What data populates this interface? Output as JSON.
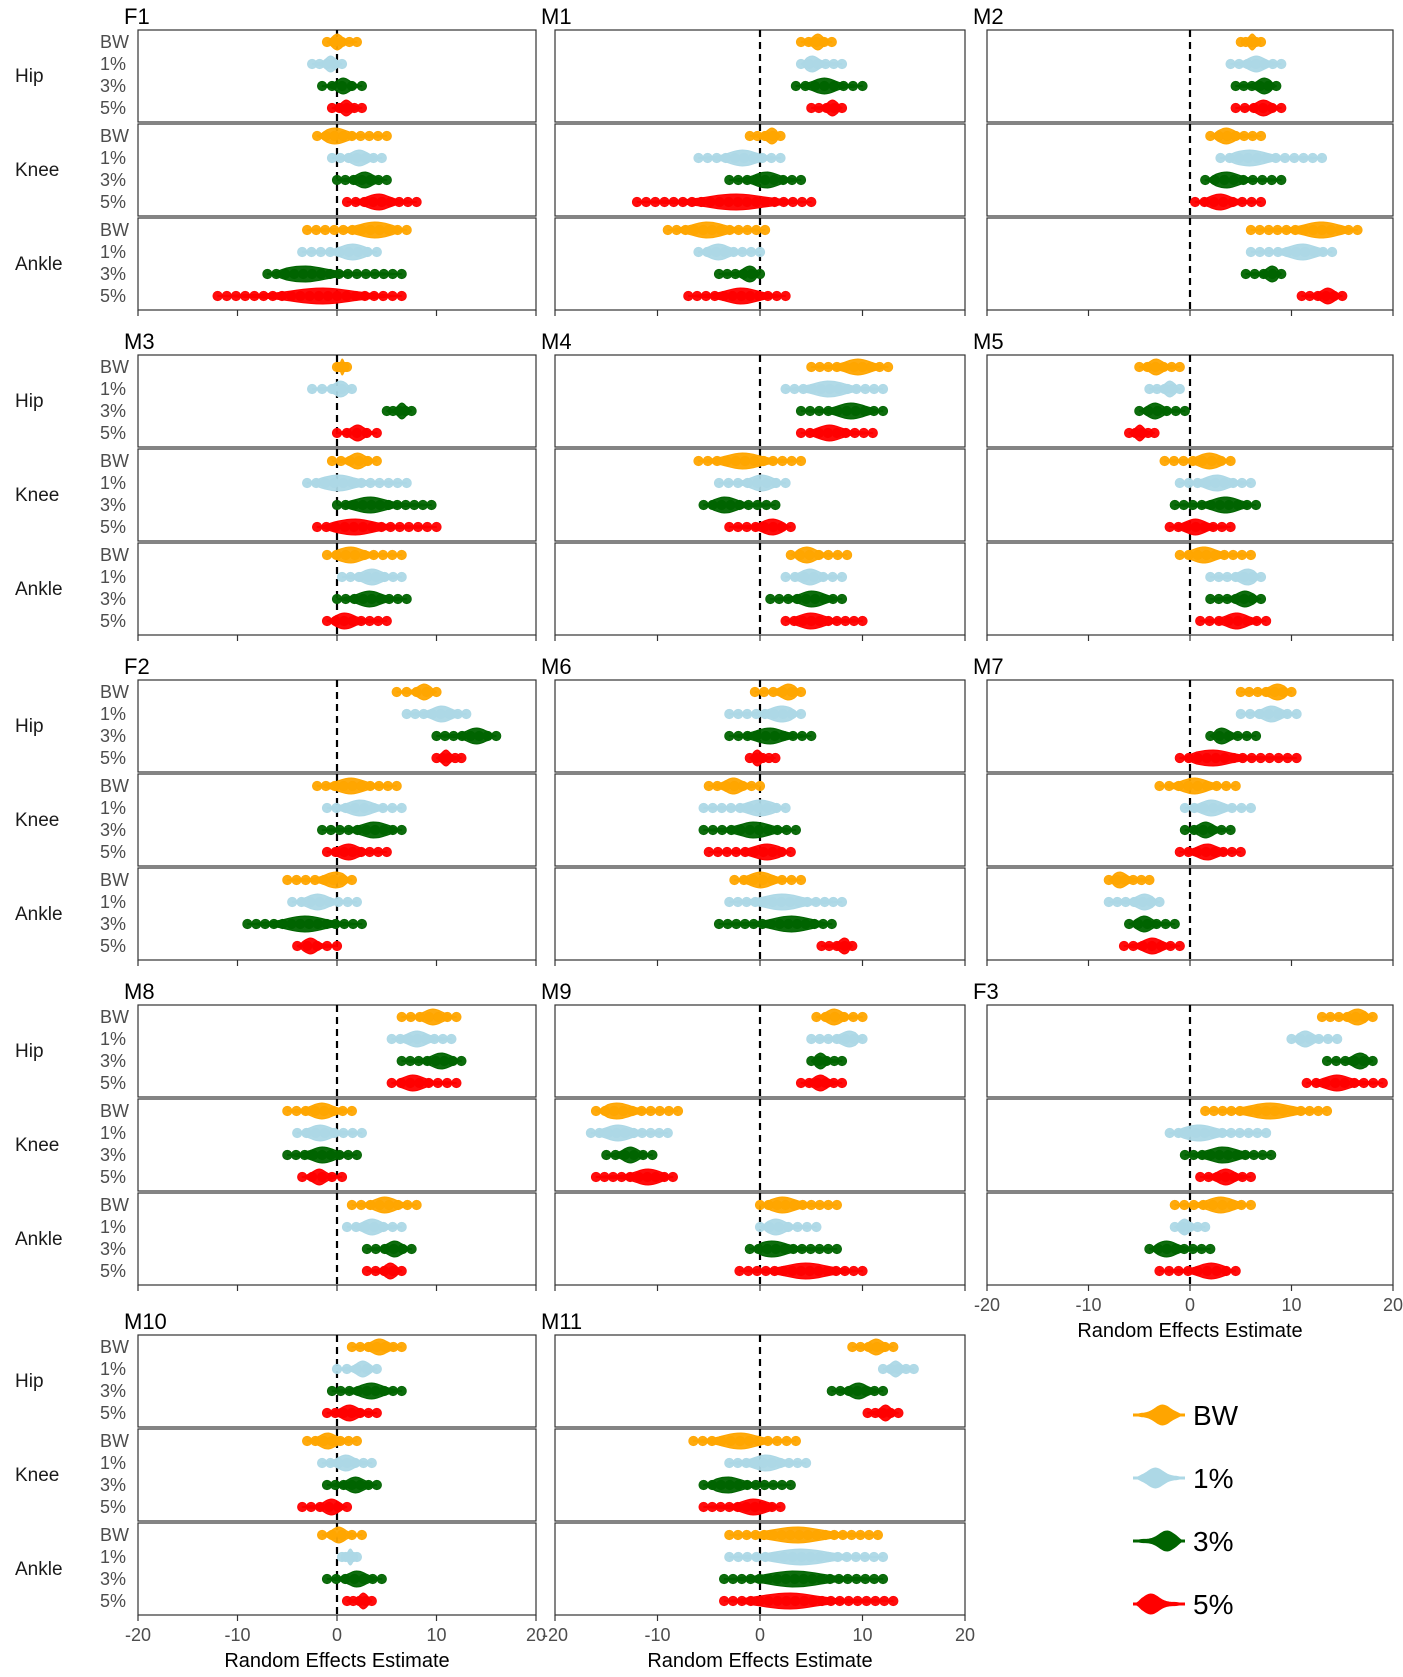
{
  "chart_data": {
    "type": "violin",
    "xlabel": "Random Effects Estimate",
    "xlim": [
      -20,
      20
    ],
    "xticks": [
      -20,
      -10,
      0,
      10,
      20
    ],
    "reference_line_x": 0,
    "groups": [
      "Hip",
      "Knee",
      "Ankle"
    ],
    "conditions": [
      "BW",
      "1%",
      "3%",
      "5%"
    ],
    "colors": {
      "BW": "#FFA500",
      "1%": "#ADD8E6",
      "3%": "#006400",
      "5%": "#FF0000"
    },
    "legend": {
      "position": "bottom-right",
      "entries": [
        "BW",
        "1%",
        "3%",
        "5%"
      ]
    },
    "panels": [
      {
        "id": "F1",
        "data": {
          "Hip": {
            "BW": [
              -1,
              2
            ],
            "1%": [
              -2.5,
              0.5
            ],
            "3%": [
              -1.5,
              2.5
            ],
            "5%": [
              -0.5,
              2.5
            ]
          },
          "Knee": {
            "BW": [
              -2,
              5
            ],
            "1%": [
              -0.5,
              4.5
            ],
            "3%": [
              0,
              5
            ],
            "5%": [
              1,
              8
            ]
          },
          "Ankle": {
            "BW": [
              -3,
              7
            ],
            "1%": [
              -3.5,
              4
            ],
            "3%": [
              -7,
              6.5
            ],
            "5%": [
              -12,
              6.5
            ]
          }
        }
      },
      {
        "id": "M1",
        "data": {
          "Hip": {
            "BW": [
              4,
              7
            ],
            "1%": [
              4,
              8
            ],
            "3%": [
              3.5,
              10
            ],
            "5%": [
              5,
              8
            ]
          },
          "Knee": {
            "BW": [
              -1,
              2
            ],
            "1%": [
              -6,
              2
            ],
            "3%": [
              -3,
              4
            ],
            "5%": [
              -12,
              5
            ]
          },
          "Ankle": {
            "BW": [
              -9,
              0.5
            ],
            "1%": [
              -6,
              0
            ],
            "3%": [
              -4,
              0
            ],
            "5%": [
              -7,
              2.5
            ]
          }
        }
      },
      {
        "id": "M2",
        "data": {
          "Hip": {
            "BW": [
              5,
              7
            ],
            "1%": [
              4,
              9
            ],
            "3%": [
              4.5,
              8.5
            ],
            "5%": [
              4.5,
              9
            ]
          },
          "Knee": {
            "BW": [
              2,
              7
            ],
            "1%": [
              3,
              13
            ],
            "3%": [
              1.5,
              9
            ],
            "5%": [
              0.5,
              7
            ]
          },
          "Ankle": {
            "BW": [
              6,
              16.5
            ],
            "1%": [
              6,
              14
            ],
            "3%": [
              5.5,
              9
            ],
            "5%": [
              11,
              15
            ]
          }
        }
      },
      {
        "id": "M3",
        "data": {
          "Hip": {
            "BW": [
              0,
              1
            ],
            "1%": [
              -2.5,
              1.5
            ],
            "3%": [
              5,
              7.5
            ],
            "5%": [
              0,
              4
            ]
          },
          "Knee": {
            "BW": [
              -0.5,
              4
            ],
            "1%": [
              -3,
              7
            ],
            "3%": [
              0,
              9.5
            ],
            "5%": [
              -2,
              10
            ]
          },
          "Ankle": {
            "BW": [
              -1,
              6.5
            ],
            "1%": [
              0.5,
              6.5
            ],
            "3%": [
              0,
              7
            ],
            "5%": [
              -1,
              5
            ]
          }
        }
      },
      {
        "id": "M4",
        "data": {
          "Hip": {
            "BW": [
              5,
              12.5
            ],
            "1%": [
              2.5,
              12
            ],
            "3%": [
              4,
              12
            ],
            "5%": [
              4,
              11
            ]
          },
          "Knee": {
            "BW": [
              -6,
              4
            ],
            "1%": [
              -4,
              2.5
            ],
            "3%": [
              -5.5,
              1.5
            ],
            "5%": [
              -3,
              3
            ]
          },
          "Ankle": {
            "BW": [
              3,
              8.5
            ],
            "1%": [
              2.5,
              8
            ],
            "3%": [
              1,
              8
            ],
            "5%": [
              2.5,
              10
            ]
          }
        }
      },
      {
        "id": "M5",
        "data": {
          "Hip": {
            "BW": [
              -5,
              -1
            ],
            "1%": [
              -4,
              -1
            ],
            "3%": [
              -5,
              -0.5
            ],
            "5%": [
              -6,
              -3.5
            ]
          },
          "Knee": {
            "BW": [
              -2.5,
              4
            ],
            "1%": [
              -1,
              6
            ],
            "3%": [
              -1.5,
              6.5
            ],
            "5%": [
              -2,
              4
            ]
          },
          "Ankle": {
            "BW": [
              -1,
              6
            ],
            "1%": [
              2,
              7
            ],
            "3%": [
              2,
              7
            ],
            "5%": [
              1,
              7.5
            ]
          }
        }
      },
      {
        "id": "F2",
        "data": {
          "Hip": {
            "BW": [
              6,
              10
            ],
            "1%": [
              7,
              13
            ],
            "3%": [
              10,
              16
            ],
            "5%": [
              10,
              12.5
            ]
          },
          "Knee": {
            "BW": [
              -2,
              6
            ],
            "1%": [
              -1,
              6.5
            ],
            "3%": [
              -1.5,
              6.5
            ],
            "5%": [
              -1,
              5
            ]
          },
          "Ankle": {
            "BW": [
              -5,
              1.5
            ],
            "1%": [
              -4.5,
              2
            ],
            "3%": [
              -9,
              2.5
            ],
            "5%": [
              -4,
              0
            ]
          }
        }
      },
      {
        "id": "M6",
        "data": {
          "Hip": {
            "BW": [
              -0.5,
              4
            ],
            "1%": [
              -3,
              4
            ],
            "3%": [
              -3,
              5
            ],
            "5%": [
              -1,
              1.5
            ]
          },
          "Knee": {
            "BW": [
              -5,
              0
            ],
            "1%": [
              -5.5,
              2.5
            ],
            "3%": [
              -5.5,
              3.5
            ],
            "5%": [
              -5,
              3
            ]
          },
          "Ankle": {
            "BW": [
              -2.5,
              4
            ],
            "1%": [
              -3,
              8
            ],
            "3%": [
              -4,
              7
            ],
            "5%": [
              6,
              9
            ]
          }
        }
      },
      {
        "id": "M7",
        "data": {
          "Hip": {
            "BW": [
              5,
              10
            ],
            "1%": [
              5,
              10.5
            ],
            "3%": [
              2,
              6.5
            ],
            "5%": [
              -1,
              10.5
            ]
          },
          "Knee": {
            "BW": [
              -3,
              4.5
            ],
            "1%": [
              -0.5,
              6
            ],
            "3%": [
              -0.5,
              4
            ],
            "5%": [
              -1,
              5
            ]
          },
          "Ankle": {
            "BW": [
              -8,
              -4
            ],
            "1%": [
              -8,
              -3
            ],
            "3%": [
              -6,
              -1.5
            ],
            "5%": [
              -6.5,
              -1
            ]
          }
        }
      },
      {
        "id": "M8",
        "data": {
          "Hip": {
            "BW": [
              6.5,
              12
            ],
            "1%": [
              5.5,
              11.5
            ],
            "3%": [
              6.5,
              12.5
            ],
            "5%": [
              5.5,
              12
            ]
          },
          "Knee": {
            "BW": [
              -5,
              1.5
            ],
            "1%": [
              -4,
              2.5
            ],
            "3%": [
              -5,
              2
            ],
            "5%": [
              -3.5,
              0.5
            ]
          },
          "Ankle": {
            "BW": [
              1.5,
              8
            ],
            "1%": [
              1,
              6.5
            ],
            "3%": [
              3,
              7.5
            ],
            "5%": [
              3,
              6.5
            ]
          }
        }
      },
      {
        "id": "M9",
        "data": {
          "Hip": {
            "BW": [
              5.5,
              10
            ],
            "1%": [
              5,
              10
            ],
            "3%": [
              5,
              8
            ],
            "5%": [
              4,
              8
            ]
          },
          "Knee": {
            "BW": [
              -16,
              -8
            ],
            "1%": [
              -16.5,
              -9
            ],
            "3%": [
              -15,
              -10.5
            ],
            "5%": [
              -16,
              -8.5
            ]
          },
          "Ankle": {
            "BW": [
              0,
              7.5
            ],
            "1%": [
              0,
              5.5
            ],
            "3%": [
              -1,
              7.5
            ],
            "5%": [
              -2,
              10
            ]
          }
        }
      },
      {
        "id": "F3",
        "data": {
          "Hip": {
            "BW": [
              13,
              18
            ],
            "1%": [
              10,
              14.5
            ],
            "3%": [
              13.5,
              18
            ],
            "5%": [
              11.5,
              19
            ]
          },
          "Knee": {
            "BW": [
              1.5,
              13.5
            ],
            "1%": [
              -2,
              7.5
            ],
            "3%": [
              -0.5,
              8
            ],
            "5%": [
              1,
              6
            ]
          },
          "Ankle": {
            "BW": [
              -1.5,
              6
            ],
            "1%": [
              -1.5,
              1.5
            ],
            "3%": [
              -4,
              2
            ],
            "5%": [
              -3,
              4.5
            ]
          }
        }
      },
      {
        "id": "M10",
        "data": {
          "Hip": {
            "BW": [
              1.5,
              6.5
            ],
            "1%": [
              0,
              4
            ],
            "3%": [
              -0.5,
              6.5
            ],
            "5%": [
              -1,
              4
            ]
          },
          "Knee": {
            "BW": [
              -3,
              2
            ],
            "1%": [
              -1.5,
              3.5
            ],
            "3%": [
              -1,
              4
            ],
            "5%": [
              -3.5,
              1
            ]
          },
          "Ankle": {
            "BW": [
              -1.5,
              2.5
            ],
            "1%": [
              0.5,
              2
            ],
            "3%": [
              -1,
              4.5
            ],
            "5%": [
              1,
              3.5
            ]
          }
        }
      },
      {
        "id": "M11",
        "data": {
          "Hip": {
            "BW": [
              9,
              13
            ],
            "1%": [
              12,
              15
            ],
            "3%": [
              7,
              12
            ],
            "5%": [
              10.5,
              13.5
            ]
          },
          "Knee": {
            "BW": [
              -6.5,
              3.5
            ],
            "1%": [
              -3,
              4.5
            ],
            "3%": [
              -5.5,
              3
            ],
            "5%": [
              -5.5,
              2
            ]
          },
          "Ankle": {
            "BW": [
              -3,
              11.5
            ],
            "1%": [
              -3,
              12
            ],
            "3%": [
              -3.5,
              12
            ],
            "5%": [
              -3.5,
              13
            ]
          }
        }
      }
    ]
  }
}
